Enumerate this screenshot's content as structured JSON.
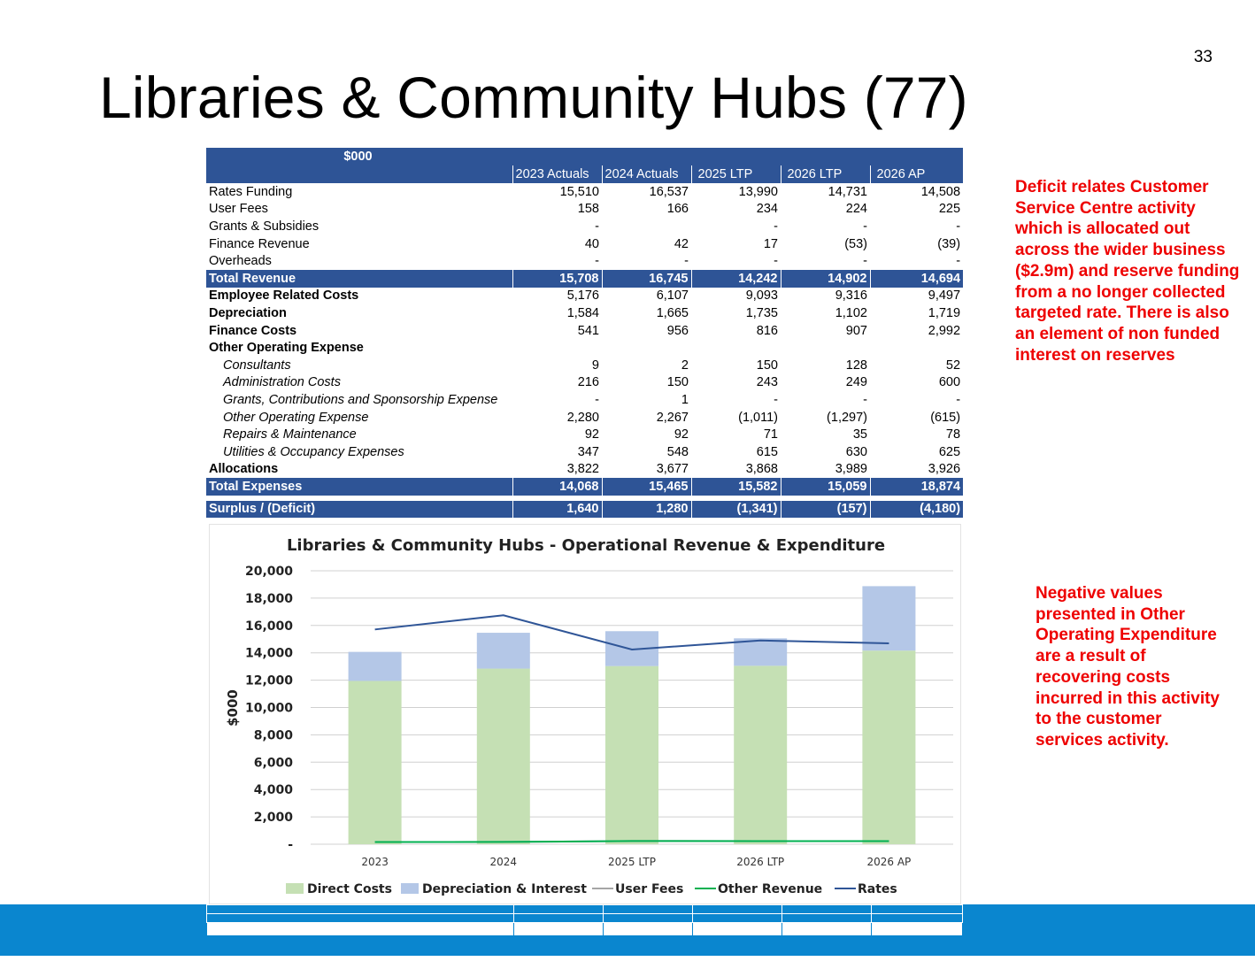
{
  "page_number": "33",
  "title": "Libraries & Community Hubs (77)",
  "table": {
    "unit_label": "$000",
    "columns": [
      "2023 Actuals",
      "2024 Actuals",
      "2025 LTP",
      "2026 LTP",
      "2026 AP"
    ],
    "rows": [
      {
        "label": "Rates Funding",
        "style": "normal",
        "values": [
          "15,510",
          "16,537",
          "13,990",
          "14,731",
          "14,508"
        ]
      },
      {
        "label": "User Fees",
        "style": "normal",
        "values": [
          "158",
          "166",
          "234",
          "224",
          "225"
        ]
      },
      {
        "label": "Grants & Subsidies",
        "style": "normal",
        "values": [
          "-",
          "",
          "-",
          "-",
          "-"
        ]
      },
      {
        "label": "Finance Revenue",
        "style": "normal",
        "values": [
          "40",
          "42",
          "17",
          "(53)",
          "(39)"
        ]
      },
      {
        "label": "Overheads",
        "style": "normal",
        "values": [
          "-",
          "-",
          "-",
          "-",
          "-"
        ]
      },
      {
        "label": "Total Revenue",
        "style": "total",
        "values": [
          "15,708",
          "16,745",
          "14,242",
          "14,902",
          "14,694"
        ]
      },
      {
        "label": "Employee Related Costs",
        "style": "bold",
        "values": [
          "5,176",
          "6,107",
          "9,093",
          "9,316",
          "9,497"
        ]
      },
      {
        "label": "Depreciation",
        "style": "bold",
        "values": [
          "1,584",
          "1,665",
          "1,735",
          "1,102",
          "1,719"
        ]
      },
      {
        "label": "Finance Costs",
        "style": "bold",
        "values": [
          "541",
          "956",
          "816",
          "907",
          "2,992"
        ]
      },
      {
        "label": "Other Operating  Expense",
        "style": "bold",
        "values": [
          "",
          "",
          "",
          "",
          ""
        ]
      },
      {
        "label": "Consultants",
        "style": "sub",
        "values": [
          "9",
          "2",
          "150",
          "128",
          "52"
        ]
      },
      {
        "label": "Administration Costs",
        "style": "sub",
        "values": [
          "216",
          "150",
          "243",
          "249",
          "600"
        ]
      },
      {
        "label": "Grants, Contributions and Sponsorship Expense",
        "style": "sub",
        "values": [
          "-",
          "1",
          "-",
          "-",
          "-"
        ]
      },
      {
        "label": "Other Operating Expense",
        "style": "sub",
        "values": [
          "2,280",
          "2,267",
          "(1,011)",
          "(1,297)",
          "(615)"
        ]
      },
      {
        "label": "Repairs & Maintenance",
        "style": "sub",
        "values": [
          "92",
          "92",
          "71",
          "35",
          "78"
        ]
      },
      {
        "label": "Utilities & Occupancy Expenses",
        "style": "sub",
        "values": [
          "347",
          "548",
          "615",
          "630",
          "625"
        ]
      },
      {
        "label": "Allocations",
        "style": "bold",
        "values": [
          "3,822",
          "3,677",
          "3,868",
          "3,989",
          "3,926"
        ]
      },
      {
        "label": "Total Expenses",
        "style": "total",
        "values": [
          "14,068",
          "15,465",
          "15,582",
          "15,059",
          "18,874"
        ]
      },
      {
        "label": "",
        "style": "gap",
        "values": [
          "",
          "",
          "",
          "",
          ""
        ]
      },
      {
        "label": "Surplus / (Deficit)",
        "style": "total",
        "values": [
          "1,640",
          "1,280",
          "(1,341)",
          "(157)",
          "(4,180)"
        ]
      }
    ]
  },
  "chart_data": {
    "type": "bar",
    "title": "Libraries & Community Hubs - Operational Revenue & Expenditure",
    "ylabel": "$000",
    "xlabel": "",
    "categories": [
      "2023",
      "2024",
      "2025 LTP",
      "2026 LTP",
      "2026 AP"
    ],
    "ylim": [
      0,
      20000
    ],
    "yticks": [
      0,
      2000,
      4000,
      6000,
      8000,
      10000,
      12000,
      14000,
      16000,
      18000,
      20000
    ],
    "ytick_labels": [
      "-",
      "2,000",
      "4,000",
      "6,000",
      "8,000",
      "10,000",
      "12,000",
      "14,000",
      "16,000",
      "18,000",
      "20,000"
    ],
    "stacked_bars": [
      {
        "name": "Direct Costs",
        "color": "#c5e0b4",
        "values": [
          11943,
          12844,
          13031,
          13050,
          14163
        ]
      },
      {
        "name": "Depreciation & Interest",
        "color": "#b4c7e7",
        "values": [
          2125,
          2621,
          2551,
          2009,
          4711
        ]
      }
    ],
    "lines": [
      {
        "name": "User Fees",
        "color": "#a6a6a6",
        "values": [
          158,
          166,
          234,
          224,
          225
        ]
      },
      {
        "name": "Other Revenue",
        "color": "#00b050",
        "values": [
          158,
          166,
          234,
          224,
          225
        ]
      },
      {
        "name": "Rates",
        "color": "#2f5597",
        "values": [
          15708,
          16745,
          14242,
          14902,
          14694
        ]
      }
    ],
    "grid": true,
    "legend_position": "bottom"
  },
  "notes": {
    "note_1": "Deficit relates Customer Service Centre activity which is allocated out across the wider business ($2.9m) and reserve funding from a no longer collected targeted rate. There is also an element of non funded interest on reserves",
    "note_2": "Negative values presented in Other Operating Expenditure are a result of recovering costs incurred in this activity to the customer services activity."
  },
  "colors": {
    "table_header": "#2e5496",
    "bottom_band": "#0a86cf",
    "note_text": "#ee0000"
  }
}
